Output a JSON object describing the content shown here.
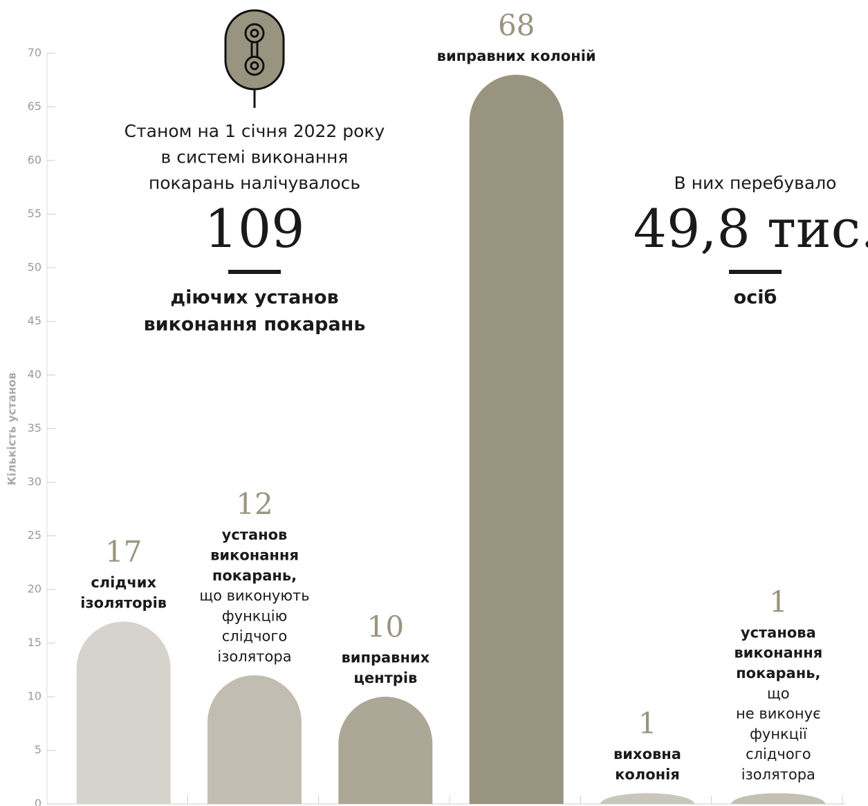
{
  "chart_data": {
    "type": "bar",
    "y_label": "Кількість установ",
    "values": [
      17,
      12,
      10,
      68,
      1,
      1
    ],
    "colors": [
      "#d6d3cc",
      "#c1bdb1",
      "#aca797",
      "#99947f",
      "#c9c6bc",
      "#c3c0b4"
    ],
    "labels": [
      {
        "bold": [
          "слідчих",
          "ізоляторів"
        ],
        "regular": []
      },
      {
        "bold": [
          "установ",
          "виконання",
          "покарань,"
        ],
        "regular": [
          "що виконують",
          "функцію",
          "слідчого",
          "ізолятора"
        ]
      },
      {
        "bold": [
          "виправних",
          "центрів"
        ],
        "regular": []
      },
      {
        "bold": [
          "виправних колоній"
        ],
        "regular": []
      },
      {
        "bold": [
          "виховна",
          "колонія"
        ],
        "regular": []
      },
      {
        "bold": [
          "установа",
          "виконання",
          "покарань,"
        ],
        "regular": [
          "що",
          "не виконує",
          "функції",
          "слідчого",
          "ізолятора"
        ]
      }
    ],
    "ylim": [
      0,
      70
    ],
    "yticks": [
      0,
      5,
      10,
      15,
      20,
      25,
      30,
      35,
      40,
      45,
      50,
      55,
      60,
      65,
      70
    ],
    "annotations": {
      "left": {
        "lines": [
          "Станом на 1 січня 2022 року",
          "в системі виконання",
          "покарань налічувалось"
        ],
        "big": "109",
        "caption": [
          "діючих установ",
          "виконання покарань"
        ]
      },
      "right": {
        "lines": [
          "В них перебувало"
        ],
        "big": "49,8 тис.",
        "caption": [
          "осіб"
        ]
      }
    }
  }
}
